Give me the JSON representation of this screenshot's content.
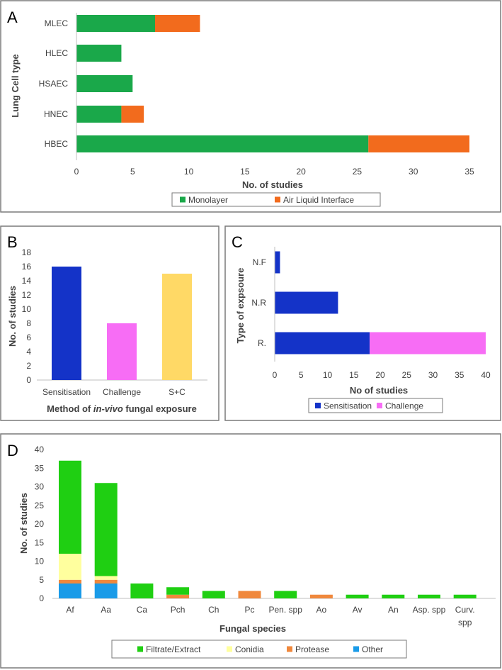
{
  "colors": {
    "monolayer": "#1aa84a",
    "ali": "#f26b1d",
    "sensitisation": "#1433c8",
    "challenge": "#f76df5",
    "sc": "#ffd966",
    "filtrate": "#1fcf12",
    "conidia": "#ffff9e",
    "protease": "#f0883c",
    "other": "#1a9be8",
    "frame": "#7a7a7a",
    "text": "#404040"
  },
  "chart_data": [
    {
      "panel": "A",
      "type": "bar",
      "orientation": "horizontal",
      "stacked": true,
      "categories": [
        "MLEC",
        "HLEC",
        "HSAEC",
        "HNEC",
        "HBEC"
      ],
      "series": [
        {
          "name": "Monolayer",
          "values": [
            7,
            4,
            5,
            4,
            26
          ],
          "color_key": "monolayer"
        },
        {
          "name": "Air Liquid Interface",
          "values": [
            4,
            0,
            0,
            2,
            9
          ],
          "color_key": "ali"
        }
      ],
      "xlim": [
        0,
        35
      ],
      "xticks": [
        "0",
        "5",
        "10",
        "15",
        "20",
        "25",
        "30",
        "35"
      ],
      "xlabel": "No. of studies",
      "ylabel": "Lung Cell type",
      "legend_position": "bottom"
    },
    {
      "panel": "B",
      "type": "bar",
      "orientation": "vertical",
      "categories": [
        "Sensitisation",
        "Challenge",
        "S+C"
      ],
      "values": [
        16,
        8,
        15
      ],
      "color_keys": [
        "sensitisation",
        "challenge",
        "sc"
      ],
      "ylim": [
        0,
        18
      ],
      "yticks": [
        "0",
        "2",
        "4",
        "6",
        "8",
        "10",
        "12",
        "14",
        "16",
        "18"
      ],
      "ylabel": "No. of studies",
      "xlabel_parts": [
        "Method of ",
        "in-vivo",
        " fungal exposure"
      ]
    },
    {
      "panel": "C",
      "type": "bar",
      "orientation": "horizontal",
      "stacked": true,
      "categories": [
        "N.F",
        "N.R",
        "R."
      ],
      "series": [
        {
          "name": "Sensitisation",
          "values": [
            1,
            12,
            18
          ],
          "color_key": "sensitisation"
        },
        {
          "name": "Challenge",
          "values": [
            0,
            0,
            22
          ],
          "color_key": "challenge"
        }
      ],
      "xlim": [
        0,
        40
      ],
      "xticks": [
        "0",
        "5",
        "10",
        "15",
        "20",
        "25",
        "30",
        "35",
        "40"
      ],
      "xlabel": "No of studies",
      "ylabel": "Type of expsoure",
      "legend_position": "bottom"
    },
    {
      "panel": "D",
      "type": "bar",
      "orientation": "vertical",
      "stacked": true,
      "categories": [
        "Af",
        "Aa",
        "Ca",
        "Pch",
        "Ch",
        "Pc",
        "Pen. spp",
        "Ao",
        "Av",
        "An",
        "Asp. spp",
        "Curv. spp"
      ],
      "series": [
        {
          "name": "Other",
          "values": [
            4,
            4,
            0,
            0,
            0,
            0,
            0,
            0,
            0,
            0,
            0,
            0
          ],
          "color_key": "other"
        },
        {
          "name": "Protease",
          "values": [
            1,
            1,
            0,
            1,
            0,
            2,
            0,
            1,
            0,
            0,
            0,
            0
          ],
          "color_key": "protease"
        },
        {
          "name": "Conidia",
          "values": [
            7,
            1,
            0,
            0,
            0,
            0,
            0,
            0,
            0,
            0,
            0,
            0
          ],
          "color_key": "conidia"
        },
        {
          "name": "Filtrate/Extract",
          "values": [
            25,
            25,
            4,
            2,
            2,
            0,
            2,
            0,
            1,
            1,
            1,
            1
          ],
          "color_key": "filtrate"
        }
      ],
      "legend_order": [
        "Filtrate/Extract",
        "Conidia",
        "Protease",
        "Other"
      ],
      "ylim": [
        0,
        40
      ],
      "yticks": [
        "0",
        "5",
        "10",
        "15",
        "20",
        "25",
        "30",
        "35",
        "40"
      ],
      "ylabel": "No. of studies",
      "xlabel": "Fungal species",
      "legend_position": "bottom"
    }
  ]
}
